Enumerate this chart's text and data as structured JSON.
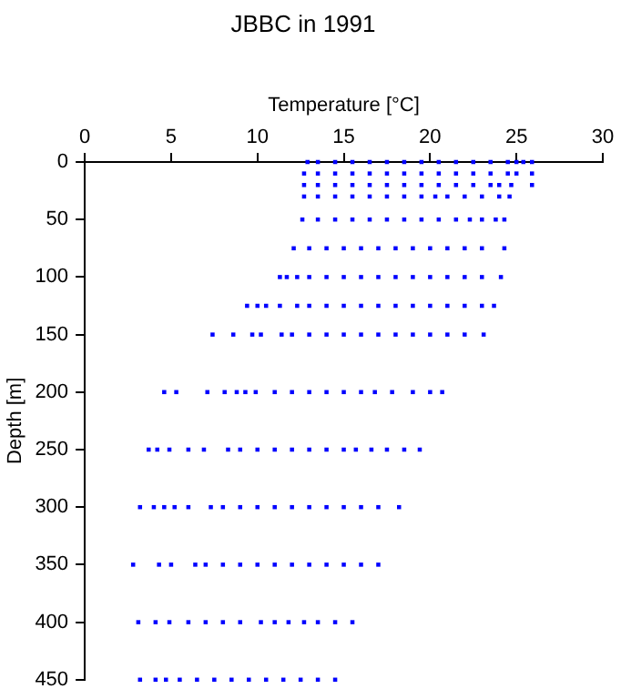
{
  "chart_data": {
    "type": "scatter",
    "title": "JBBC in 1991",
    "xlabel": "Temperature [°C]",
    "ylabel": "Depth [m]",
    "xlim": [
      0,
      30
    ],
    "xticks": [
      0,
      5,
      10,
      15,
      20,
      25,
      30
    ],
    "ylim": [
      450,
      0
    ],
    "yticks": [
      0,
      50,
      100,
      150,
      200,
      250,
      300,
      350,
      400,
      450
    ],
    "marker": "square",
    "grid": false,
    "legend": false,
    "series": [
      {
        "color": "#0000ff",
        "x": [
          12.9,
          13.5,
          14.5,
          15.5,
          16.5,
          17.5,
          18.5,
          19.5,
          20.5,
          21.5,
          22.5,
          23.5,
          24.5,
          25.0,
          25.4,
          25.9
        ],
        "values": [
          0,
          0,
          0,
          0,
          0,
          0,
          0,
          0,
          0,
          0,
          0,
          0,
          0,
          0,
          0,
          0
        ]
      },
      {
        "color": "#0000ff",
        "x": [
          12.7,
          13.5,
          14.5,
          15.5,
          16.5,
          17.5,
          18.5,
          19.5,
          20.5,
          21.5,
          22.5,
          23.5,
          24.5,
          25.0,
          25.9
        ],
        "values": [
          10,
          10,
          10,
          10,
          10,
          10,
          10,
          10,
          10,
          10,
          10,
          10,
          10,
          10,
          10
        ]
      },
      {
        "color": "#0000ff",
        "x": [
          12.7,
          13.5,
          14.5,
          15.5,
          16.5,
          17.5,
          18.5,
          19.5,
          20.5,
          21.5,
          22.5,
          23.5,
          24.0,
          24.7,
          25.9
        ],
        "values": [
          20,
          20,
          20,
          20,
          20,
          20,
          20,
          20,
          20,
          20,
          20,
          20,
          20,
          20,
          20
        ]
      },
      {
        "color": "#0000ff",
        "x": [
          12.7,
          13.5,
          14.5,
          15.5,
          16.5,
          17.5,
          18.5,
          19.5,
          20.3,
          21.0,
          22.0,
          23.0,
          24.0,
          24.6
        ],
        "values": [
          30,
          30,
          30,
          30,
          30,
          30,
          30,
          30,
          30,
          30,
          30,
          30,
          30,
          30
        ]
      },
      {
        "color": "#0000ff",
        "x": [
          12.6,
          13.5,
          14.5,
          15.5,
          16.5,
          17.5,
          18.5,
          19.5,
          20.5,
          21.5,
          22.3,
          23.0,
          23.8,
          24.3
        ],
        "values": [
          50,
          50,
          50,
          50,
          50,
          50,
          50,
          50,
          50,
          50,
          50,
          50,
          50,
          50
        ]
      },
      {
        "color": "#0000ff",
        "x": [
          12.1,
          13,
          14,
          15,
          16,
          17,
          18,
          19,
          20,
          21,
          22,
          23,
          24.3
        ],
        "values": [
          75,
          75,
          75,
          75,
          75,
          75,
          75,
          75,
          75,
          75,
          75,
          75,
          75
        ]
      },
      {
        "color": "#0000ff",
        "x": [
          11.3,
          11.7,
          12.3,
          13,
          14,
          15,
          16,
          17,
          18,
          19,
          20,
          21,
          22,
          23,
          24.1
        ],
        "values": [
          100,
          100,
          100,
          100,
          100,
          100,
          100,
          100,
          100,
          100,
          100,
          100,
          100,
          100,
          100
        ]
      },
      {
        "color": "#0000ff",
        "x": [
          9.4,
          10.0,
          10.5,
          11.3,
          12.3,
          13,
          14,
          15,
          16,
          17,
          18,
          19,
          20,
          21,
          22,
          23,
          23.7
        ],
        "values": [
          125,
          125,
          125,
          125,
          125,
          125,
          125,
          125,
          125,
          125,
          125,
          125,
          125,
          125,
          125,
          125,
          125
        ]
      },
      {
        "color": "#0000ff",
        "x": [
          7.4,
          8.6,
          9.7,
          10.2,
          11.4,
          12,
          13,
          14,
          15,
          16,
          17,
          18,
          19,
          20,
          21,
          22,
          23.1
        ],
        "values": [
          150,
          150,
          150,
          150,
          150,
          150,
          150,
          150,
          150,
          150,
          150,
          150,
          150,
          150,
          150,
          150,
          150
        ]
      },
      {
        "color": "#0000ff",
        "x": [
          4.6,
          5.3,
          7.1,
          8.1,
          8.8,
          9.3,
          9.9,
          11,
          12,
          13,
          14,
          15,
          16,
          16.8,
          17.8,
          19,
          20,
          20.7
        ],
        "values": [
          200,
          200,
          200,
          200,
          200,
          200,
          200,
          200,
          200,
          200,
          200,
          200,
          200,
          200,
          200,
          200,
          200,
          200
        ]
      },
      {
        "color": "#0000ff",
        "x": [
          3.7,
          4.2,
          4.9,
          6.0,
          6.9,
          8.3,
          9,
          10,
          11,
          12,
          13,
          14,
          15,
          15.7,
          16.6,
          17.5,
          18.5,
          19.4
        ],
        "values": [
          250,
          250,
          250,
          250,
          250,
          250,
          250,
          250,
          250,
          250,
          250,
          250,
          250,
          250,
          250,
          250,
          250,
          250
        ]
      },
      {
        "color": "#0000ff",
        "x": [
          3.2,
          4.0,
          4.6,
          5.2,
          6.0,
          7.3,
          8,
          9,
          10,
          11,
          12,
          13,
          14,
          15,
          16,
          17,
          18.2
        ],
        "values": [
          300,
          300,
          300,
          300,
          300,
          300,
          300,
          300,
          300,
          300,
          300,
          300,
          300,
          300,
          300,
          300,
          300
        ]
      },
      {
        "color": "#0000ff",
        "x": [
          2.8,
          4.3,
          5.0,
          6.4,
          7,
          8,
          9,
          10,
          11,
          12,
          13,
          14,
          15,
          16,
          17.0
        ],
        "values": [
          350,
          350,
          350,
          350,
          350,
          350,
          350,
          350,
          350,
          350,
          350,
          350,
          350,
          350,
          350
        ]
      },
      {
        "color": "#0000ff",
        "x": [
          3.1,
          4.1,
          4.9,
          6.0,
          7,
          8,
          9,
          10.2,
          11.0,
          11.8,
          12.7,
          13.5,
          14.5,
          15.5
        ],
        "values": [
          400,
          400,
          400,
          400,
          400,
          400,
          400,
          400,
          400,
          400,
          400,
          400,
          400,
          400
        ]
      },
      {
        "color": "#0000ff",
        "x": [
          3.2,
          4.1,
          4.7,
          5.5,
          6.5,
          7.5,
          8.5,
          9.5,
          10.5,
          11.5,
          12.5,
          13.5,
          14.5
        ],
        "values": [
          450,
          450,
          450,
          450,
          450,
          450,
          450,
          450,
          450,
          450,
          450,
          450,
          450
        ]
      }
    ]
  }
}
